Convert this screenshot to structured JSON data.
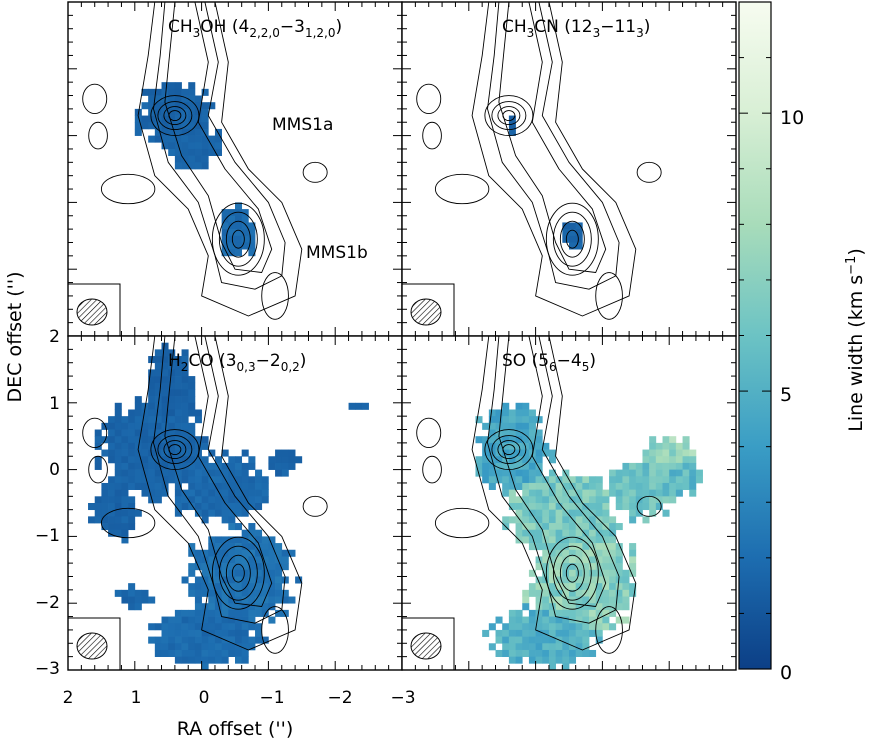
{
  "chart_data": {
    "type": "heatmap",
    "xlabel": "RA offset ('')",
    "ylabel": "DEC offset ('')",
    "xlim": [
      2,
      -3
    ],
    "ylim": [
      -3,
      2
    ],
    "x_ticks": [
      "2",
      "1",
      "0",
      "−1",
      "−2",
      "−3"
    ],
    "y_ticks": [
      "2",
      "1",
      "0",
      "−1",
      "−2",
      "−3"
    ],
    "colorbar": {
      "label": "Line width (km s",
      "label_sup": "−1",
      "label_close": ")",
      "range": [
        0,
        12
      ],
      "ticks": [
        "0",
        "5",
        "10"
      ],
      "colormap": "GnBu-reversed",
      "colors": [
        "#0c3f86",
        "#1d6db0",
        "#3a9dc5",
        "#6cc3c4",
        "#a8dcba",
        "#d8efd5",
        "#f7fcf0"
      ]
    },
    "panels": [
      {
        "id": "ch3oh",
        "label_parts": [
          [
            "CH",
            ""
          ],
          [
            "3",
            "sub"
          ],
          [
            "OH (4",
            ""
          ],
          [
            "2,2,0",
            "sub"
          ],
          [
            "−3",
            ""
          ],
          [
            "1,2,0",
            "sub"
          ],
          [
            ")",
            ""
          ]
        ],
        "annotations": [
          "MMS1a",
          "MMS1b"
        ],
        "emission": [
          {
            "x": 0.38,
            "y": 0.3,
            "rx": 0.72,
            "ry": 0.65,
            "value": 1.6
          },
          {
            "x": 0.15,
            "y": -0.1,
            "rx": 0.55,
            "ry": 0.5,
            "value": 1.7
          },
          {
            "x": -0.55,
            "y": -1.45,
            "rx": 0.33,
            "ry": 0.52,
            "value": 1.9
          }
        ]
      },
      {
        "id": "ch3cn",
        "label_parts": [
          [
            "CH",
            ""
          ],
          [
            "3",
            "sub"
          ],
          [
            "CN (12",
            ""
          ],
          [
            "3",
            "sub"
          ],
          [
            "−11",
            ""
          ],
          [
            "3",
            "sub"
          ],
          [
            ")",
            ""
          ]
        ],
        "annotations": [],
        "emission": [
          {
            "x": 0.33,
            "y": 0.2,
            "rx": 0.12,
            "ry": 0.22,
            "value": 1.5
          },
          {
            "x": -0.55,
            "y": -1.5,
            "rx": 0.25,
            "ry": 0.28,
            "value": 1.6
          }
        ]
      },
      {
        "id": "h2co",
        "label_parts": [
          [
            "H",
            ""
          ],
          [
            "2",
            "sub"
          ],
          [
            "CO (3",
            ""
          ],
          [
            "0,3",
            "sub"
          ],
          [
            "−2",
            ""
          ],
          [
            "0,2",
            "sub"
          ],
          [
            ")",
            ""
          ]
        ],
        "annotations": [],
        "emission": [
          {
            "x": 0.45,
            "y": 1.25,
            "rx": 0.5,
            "ry": 0.75,
            "value": 1.5
          },
          {
            "x": 0.7,
            "y": 0.3,
            "rx": 1.05,
            "ry": 0.95,
            "value": 1.6
          },
          {
            "x": -0.3,
            "y": -0.3,
            "rx": 0.9,
            "ry": 0.7,
            "value": 1.8
          },
          {
            "x": -0.6,
            "y": -1.6,
            "rx": 1.0,
            "ry": 1.0,
            "value": 2.2
          },
          {
            "x": -0.1,
            "y": -2.5,
            "rx": 1.05,
            "ry": 0.55,
            "value": 1.9
          },
          {
            "x": 1.3,
            "y": -0.6,
            "rx": 0.45,
            "ry": 0.55,
            "value": 1.6
          },
          {
            "x": -1.2,
            "y": 0.1,
            "rx": 0.3,
            "ry": 0.3,
            "value": 1.6
          },
          {
            "x": -2.4,
            "y": 0.95,
            "rx": 0.18,
            "ry": 0.12,
            "value": 1.6
          },
          {
            "x": 1.0,
            "y": -1.9,
            "rx": 0.35,
            "ry": 0.2,
            "value": 1.7
          }
        ]
      },
      {
        "id": "so",
        "label_parts": [
          [
            "SO (5",
            ""
          ],
          [
            "6",
            "sub"
          ],
          [
            "−4",
            ""
          ],
          [
            "5",
            "sub"
          ],
          [
            ")",
            ""
          ]
        ],
        "annotations": [],
        "emission": [
          {
            "x": 0.35,
            "y": 0.3,
            "rx": 0.7,
            "ry": 0.85,
            "value": 4.5
          },
          {
            "x": -0.4,
            "y": -0.6,
            "rx": 1.1,
            "ry": 0.8,
            "value": 6.5
          },
          {
            "x": -0.7,
            "y": -1.7,
            "rx": 1.0,
            "ry": 1.05,
            "value": 7.0
          },
          {
            "x": -0.1,
            "y": -2.5,
            "rx": 1.05,
            "ry": 0.55,
            "value": 5.0
          },
          {
            "x": -1.6,
            "y": -0.3,
            "rx": 0.7,
            "ry": 0.55,
            "value": 6.0
          },
          {
            "x": -2.0,
            "y": 0.2,
            "rx": 0.55,
            "ry": 0.4,
            "value": 7.5
          },
          {
            "x": -2.2,
            "y": -0.1,
            "rx": 0.4,
            "ry": 0.35,
            "value": 5.5
          }
        ]
      }
    ],
    "contour_sources": [
      {
        "name": "MMS1a",
        "x": 0.4,
        "y": 0.3
      },
      {
        "name": "MMS1b",
        "x": -0.55,
        "y": -1.55
      }
    ],
    "beam_shape": "hatched-ellipse"
  }
}
